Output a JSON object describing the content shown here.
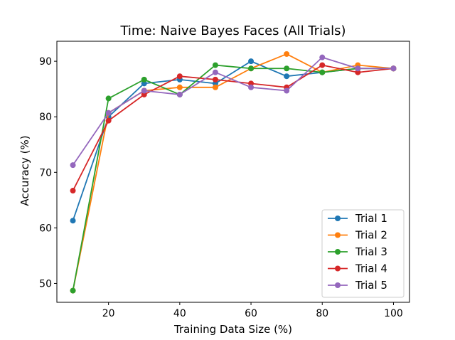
{
  "chart_data": {
    "type": "line",
    "title": "Time: Naive Bayes Faces (All Trials)",
    "xlabel": "Training Data Size (%)",
    "ylabel": "Accuracy (%)",
    "x": [
      10,
      20,
      30,
      40,
      50,
      60,
      70,
      80,
      90,
      100
    ],
    "xlim": [
      5.5,
      104.5
    ],
    "ylim": [
      46.6,
      93.6
    ],
    "xticks": [
      20,
      40,
      60,
      80,
      100
    ],
    "yticks": [
      50,
      60,
      70,
      80,
      90
    ],
    "grid": false,
    "legend_position": "lower-right",
    "series": [
      {
        "name": "Trial 1",
        "color": "#1f77b4",
        "values": [
          61.3,
          80.0,
          86.0,
          86.7,
          86.0,
          90.0,
          87.3,
          88.0,
          88.7,
          88.7
        ]
      },
      {
        "name": "Trial 2",
        "color": "#ff7f0e",
        "values": [
          48.7,
          80.7,
          84.7,
          85.3,
          85.3,
          88.7,
          91.3,
          88.0,
          89.3,
          88.7
        ]
      },
      {
        "name": "Trial 3",
        "color": "#2ca02c",
        "values": [
          48.7,
          83.3,
          86.7,
          84.0,
          89.3,
          88.7,
          88.7,
          88.0,
          88.7,
          88.7
        ]
      },
      {
        "name": "Trial 4",
        "color": "#d62728",
        "values": [
          66.7,
          79.3,
          84.0,
          87.3,
          86.7,
          86.0,
          85.3,
          89.3,
          88.0,
          88.7
        ]
      },
      {
        "name": "Trial 5",
        "color": "#9467bd",
        "values": [
          71.3,
          80.7,
          84.7,
          84.0,
          88.0,
          85.3,
          84.7,
          90.7,
          88.7,
          88.7
        ]
      }
    ]
  }
}
